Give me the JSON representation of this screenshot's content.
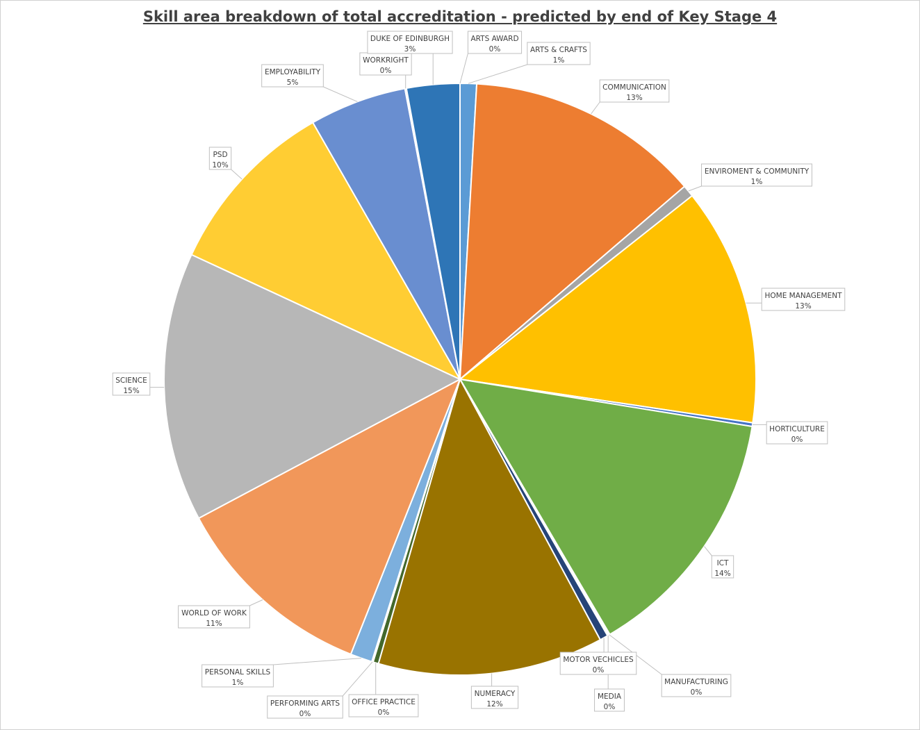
{
  "chart_data": {
    "type": "pie",
    "title": "Skill area breakdown of total accreditation - predicted by end of Key Stage 4",
    "slices": [
      {
        "label": "ARTS AWARD",
        "value": 0.0,
        "display": "0%",
        "color": "#5b9bd5"
      },
      {
        "label": "ARTS & CRAFTS",
        "value": 0.9,
        "display": "1%",
        "color": "#5b9bd5"
      },
      {
        "label": "COMMUNICATION",
        "value": 12.8,
        "display": "13%",
        "color": "#ed7d31"
      },
      {
        "label": "ENVIROMENT & COMMUNITY",
        "value": 0.65,
        "display": "1%",
        "color": "#a5a5a5"
      },
      {
        "label": "HOME MANAGEMENT",
        "value": 13.0,
        "display": "13%",
        "color": "#ffc000"
      },
      {
        "label": "HORTICULTURE",
        "value": 0.2,
        "display": "0%",
        "color": "#4472c4"
      },
      {
        "label": "ICT",
        "value": 14.0,
        "display": "14%",
        "color": "#70ad47"
      },
      {
        "label": "MANUFACTURING",
        "value": 0.07,
        "display": "0%",
        "color": "#255e91"
      },
      {
        "label": "MEDIA",
        "value": 0.07,
        "display": "0%",
        "color": "#9e480e"
      },
      {
        "label": "MOTOR VECHICLES",
        "value": 0.45,
        "display": "0%",
        "color": "#264478"
      },
      {
        "label": "NUMERACY",
        "value": 12.3,
        "display": "12%",
        "color": "#997300"
      },
      {
        "label": "OFFICE PRACTICE",
        "value": 0.3,
        "display": "0%",
        "color": "#43682b"
      },
      {
        "label": "PERFORMING ARTS",
        "value": 0.07,
        "display": "0%",
        "color": "#698ed0"
      },
      {
        "label": "PERSONAL SKILLS",
        "value": 1.2,
        "display": "1%",
        "color": "#7cafdd"
      },
      {
        "label": "WORLD OF WORK",
        "value": 11.2,
        "display": "11%",
        "color": "#f1975a"
      },
      {
        "label": "SCIENCE",
        "value": 14.7,
        "display": "15%",
        "color": "#b7b7b7"
      },
      {
        "label": "PSD",
        "value": 9.8,
        "display": "10%",
        "color": "#ffcd33"
      },
      {
        "label": "EMPLOYABILITY",
        "value": 5.3,
        "display": "5%",
        "color": "#698ed0"
      },
      {
        "label": "WORKRIGHT",
        "value": 0.08,
        "display": "0%",
        "color": "#4472c4"
      },
      {
        "label": "DUKE OF EDINBURGH",
        "value": 2.9,
        "display": "3%",
        "color": "#2e75b6"
      }
    ]
  }
}
